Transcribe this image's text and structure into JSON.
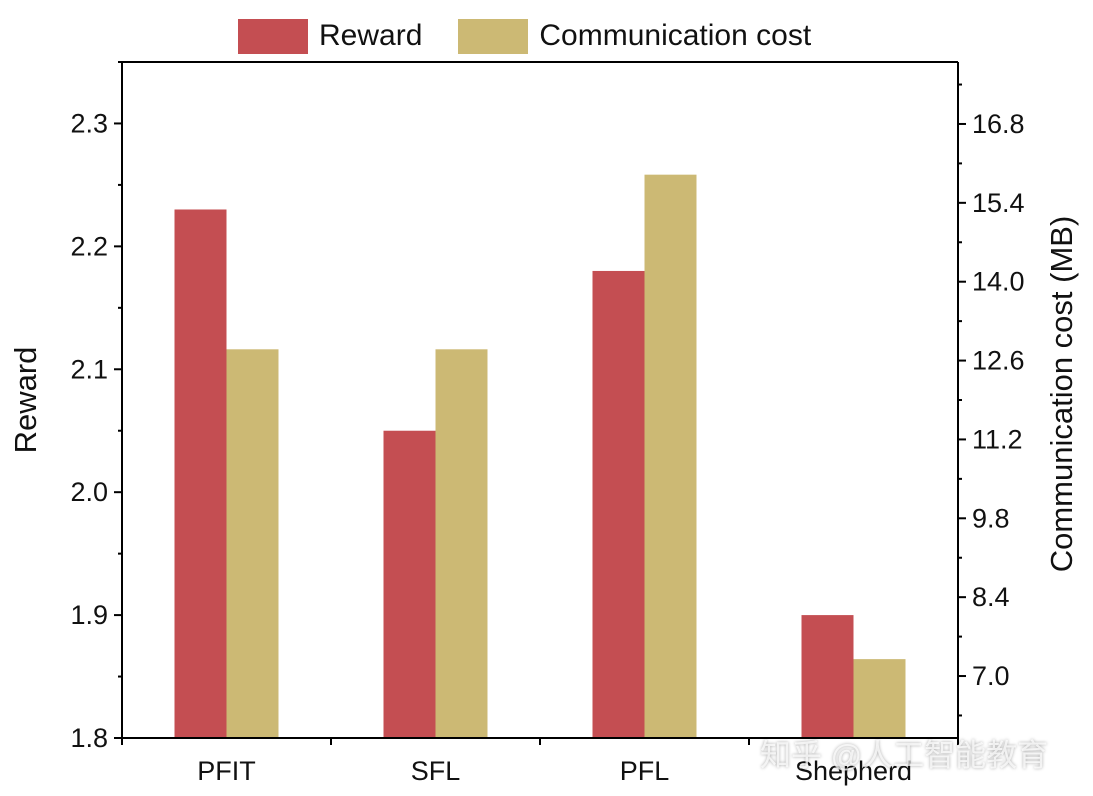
{
  "legend": {
    "reward_label": "Reward",
    "cost_label": "Communication cost"
  },
  "watermark": "知乎 @人工智能教育",
  "colors": {
    "reward": "#c44e52",
    "cost": "#ccb974",
    "axis": "#000000"
  },
  "chart_data": {
    "type": "bar",
    "categories": [
      "PFIT",
      "SFL",
      "PFL",
      "Shepherd"
    ],
    "series": [
      {
        "name": "Reward",
        "axis": "left",
        "values": [
          2.23,
          2.05,
          2.18,
          1.9
        ]
      },
      {
        "name": "Communication cost",
        "axis": "right",
        "values": [
          12.8,
          12.8,
          15.9,
          7.3
        ]
      }
    ],
    "ylabel": "Reward",
    "ylim": [
      1.8,
      2.35
    ],
    "yticks": [
      "1.8",
      "1.9",
      "2.0",
      "2.1",
      "2.2",
      "2.3"
    ],
    "y2label": "Communication cost (MB)",
    "y2lim": [
      5.9,
      17.9
    ],
    "y2ticks": [
      "7.0",
      "8.4",
      "9.8",
      "11.2",
      "12.6",
      "14.0",
      "15.4",
      "16.8"
    ],
    "grid": false,
    "legend_position": "top"
  }
}
